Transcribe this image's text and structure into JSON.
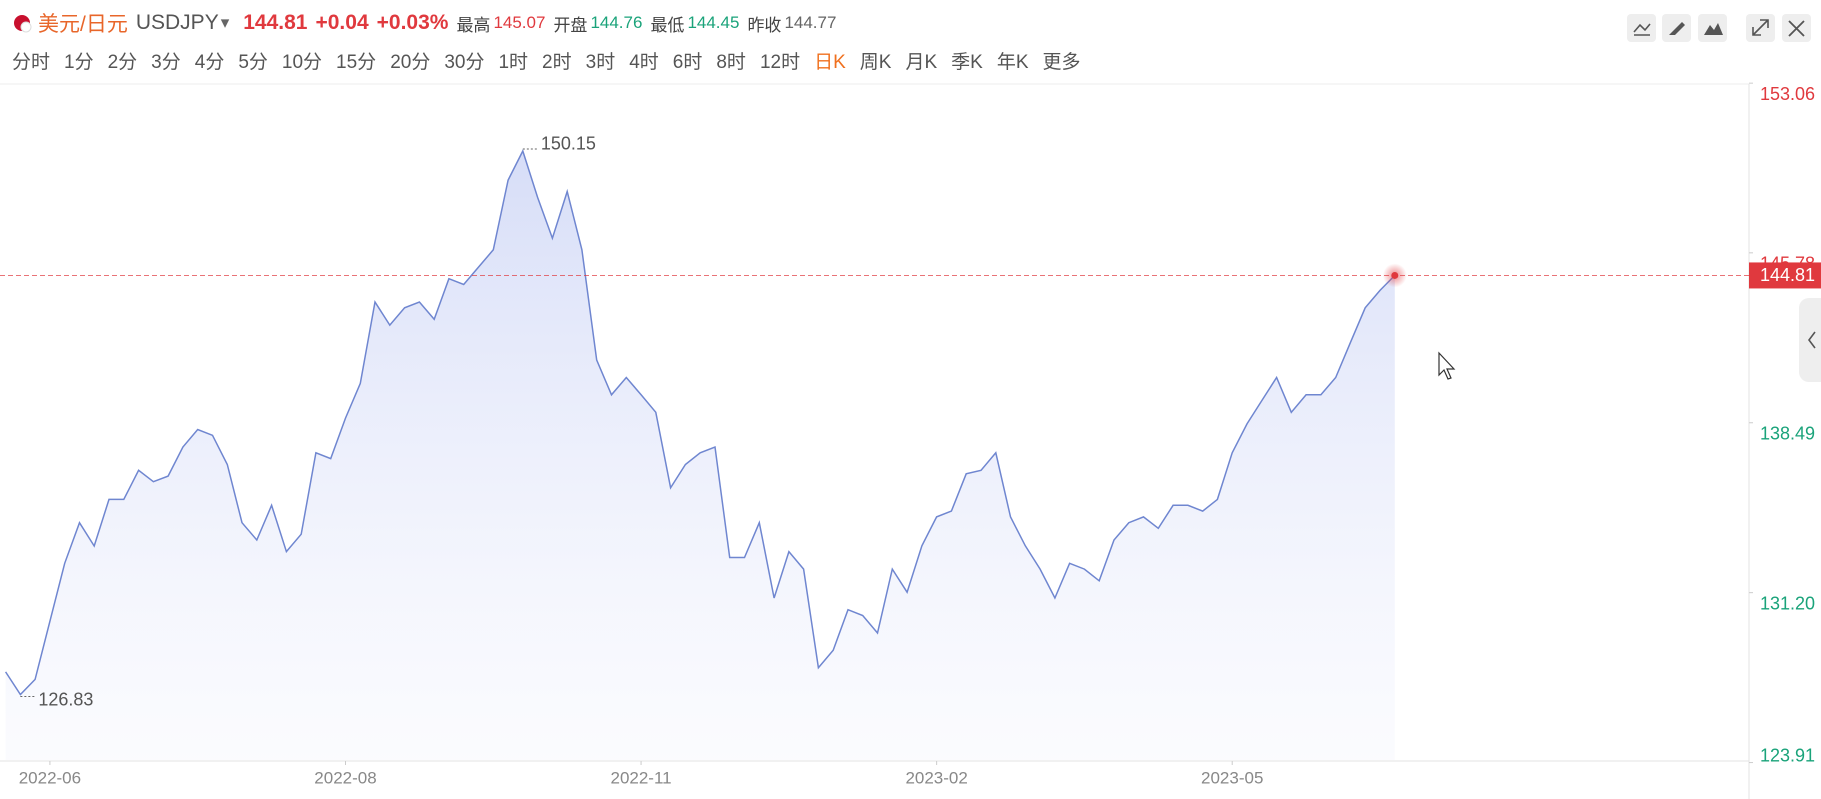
{
  "header": {
    "name": "美元/日元",
    "code": "USDJPY",
    "price": "144.81",
    "change": "+0.04",
    "change_pct": "+0.03%",
    "high_label": "最高",
    "high": "145.07",
    "open_label": "开盘",
    "open": "144.76",
    "low_label": "最低",
    "low": "144.45",
    "prev_label": "昨收",
    "prev": "144.77"
  },
  "timeframes": [
    "分时",
    "1分",
    "2分",
    "3分",
    "4分",
    "5分",
    "10分",
    "15分",
    "20分",
    "30分",
    "1时",
    "2时",
    "3时",
    "4时",
    "6时",
    "8时",
    "12时",
    "日K",
    "周K",
    "月K",
    "季K",
    "年K",
    "更多"
  ],
  "chart_data": {
    "type": "area",
    "color": "#6f86d0",
    "categories": [
      null,
      null,
      null,
      "2022-06",
      null,
      null,
      null,
      null,
      null,
      null,
      null,
      null,
      null,
      null,
      null,
      null,
      null,
      null,
      null,
      null,
      null,
      null,
      null,
      "2022-08",
      null,
      null,
      null,
      null,
      null,
      null,
      null,
      null,
      null,
      null,
      null,
      null,
      null,
      null,
      null,
      null,
      null,
      null,
      null,
      "2022-11",
      null,
      null,
      null,
      null,
      null,
      null,
      null,
      null,
      null,
      null,
      null,
      null,
      null,
      null,
      null,
      null,
      null,
      null,
      null,
      "2023-02",
      null,
      null,
      null,
      null,
      null,
      null,
      null,
      null,
      null,
      null,
      null,
      null,
      null,
      null,
      null,
      null,
      null,
      null,
      null,
      "2023-05",
      null,
      null,
      null,
      null,
      null,
      null,
      null,
      null,
      null,
      null,
      null
    ],
    "values": [
      127.8,
      126.83,
      127.48,
      129.97,
      132.46,
      134.2,
      133.2,
      135.2,
      135.2,
      136.45,
      135.96,
      136.2,
      137.45,
      138.2,
      137.95,
      136.7,
      134.2,
      133.46,
      134.95,
      132.96,
      133.71,
      137.2,
      136.95,
      138.69,
      140.18,
      143.67,
      142.68,
      143.42,
      143.67,
      142.93,
      144.67,
      144.42,
      145.17,
      145.91,
      148.9,
      150.15,
      148.16,
      146.41,
      148.41,
      145.91,
      141.18,
      139.69,
      140.43,
      139.69,
      138.94,
      135.7,
      136.7,
      137.2,
      137.45,
      132.71,
      132.71,
      134.2,
      130.97,
      132.96,
      132.21,
      127.98,
      128.73,
      130.47,
      130.22,
      129.47,
      132.21,
      131.22,
      133.21,
      134.45,
      134.7,
      136.3,
      136.45,
      137.2,
      134.45,
      133.21,
      132.21,
      130.97,
      132.46,
      132.21,
      131.71,
      133.46,
      134.2,
      134.45,
      133.96,
      134.95,
      134.95,
      134.7,
      135.2,
      137.2,
      138.44,
      139.44,
      140.43,
      138.94,
      139.69,
      139.69,
      140.43,
      141.93,
      143.42,
      144.17,
      144.81
    ],
    "ylim": [
      123.91,
      153.06
    ],
    "yticks": [
      {
        "value": 153.06,
        "label": "153.06"
      },
      {
        "value": 145.78,
        "label": "145.78"
      },
      {
        "value": 138.49,
        "label": "138.49"
      },
      {
        "value": 131.2,
        "label": "131.20"
      },
      {
        "value": 123.91,
        "label": "123.91"
      }
    ]
  }
}
